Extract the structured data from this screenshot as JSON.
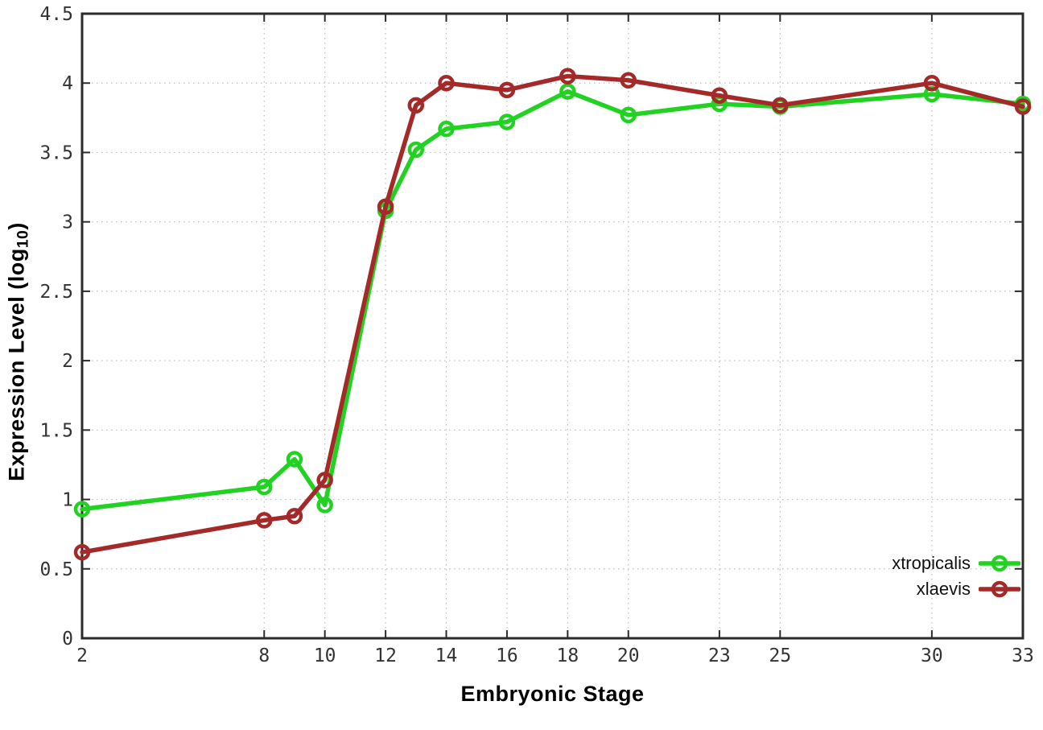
{
  "figure": {
    "background": "#ffffff",
    "x_title": "Embryonic Stage",
    "y_title_prefix": "Expression Level (log",
    "y_title_sub": "10",
    "y_title_suffix": ")"
  },
  "legend": {
    "position": "bottom-right-inside",
    "entries": [
      {
        "label": "xtropicalis",
        "color": "#22d222"
      },
      {
        "label": "xlaevis",
        "color": "#a42a2a"
      }
    ]
  },
  "chart_data": {
    "type": "line",
    "title": "",
    "xlabel": "Embryonic Stage",
    "ylabel": "Expression Level (log10)",
    "x": [
      2,
      8,
      9,
      10,
      12,
      13,
      14,
      16,
      18,
      20,
      23,
      25,
      30,
      33
    ],
    "series": [
      {
        "name": "xtropicalis",
        "color": "#22d222",
        "values": [
          0.93,
          1.09,
          1.29,
          0.96,
          3.08,
          3.52,
          3.67,
          3.72,
          3.94,
          3.77,
          3.85,
          3.83,
          3.92,
          3.85
        ]
      },
      {
        "name": "xlaevis",
        "color": "#a42a2a",
        "values": [
          0.62,
          0.85,
          0.88,
          1.14,
          3.11,
          3.84,
          4.0,
          3.95,
          4.05,
          4.02,
          3.91,
          3.84,
          4.0,
          3.83
        ]
      }
    ],
    "xlim": [
      2,
      33
    ],
    "ylim": [
      0,
      4.5
    ],
    "xtick_labels": [
      "2",
      "8",
      "10",
      "12",
      "14",
      "16",
      "18",
      "20",
      "23",
      "25",
      "30",
      "33"
    ],
    "xtick_values": [
      2,
      8,
      10,
      12,
      14,
      16,
      18,
      20,
      23,
      25,
      30,
      33
    ],
    "ytick_labels": [
      "0",
      "0.5",
      "1",
      "1.5",
      "2",
      "2.5",
      "3",
      "3.5",
      "4",
      "4.5"
    ],
    "ytick_values": [
      0,
      0.5,
      1,
      1.5,
      2,
      2.5,
      3,
      3.5,
      4,
      4.5
    ],
    "grid": true,
    "legend_position": "bottom-right"
  },
  "style": {
    "axis_color": "#2b2b2b",
    "grid_color": "#bdbdbd",
    "tick_text_color": "#333333"
  }
}
